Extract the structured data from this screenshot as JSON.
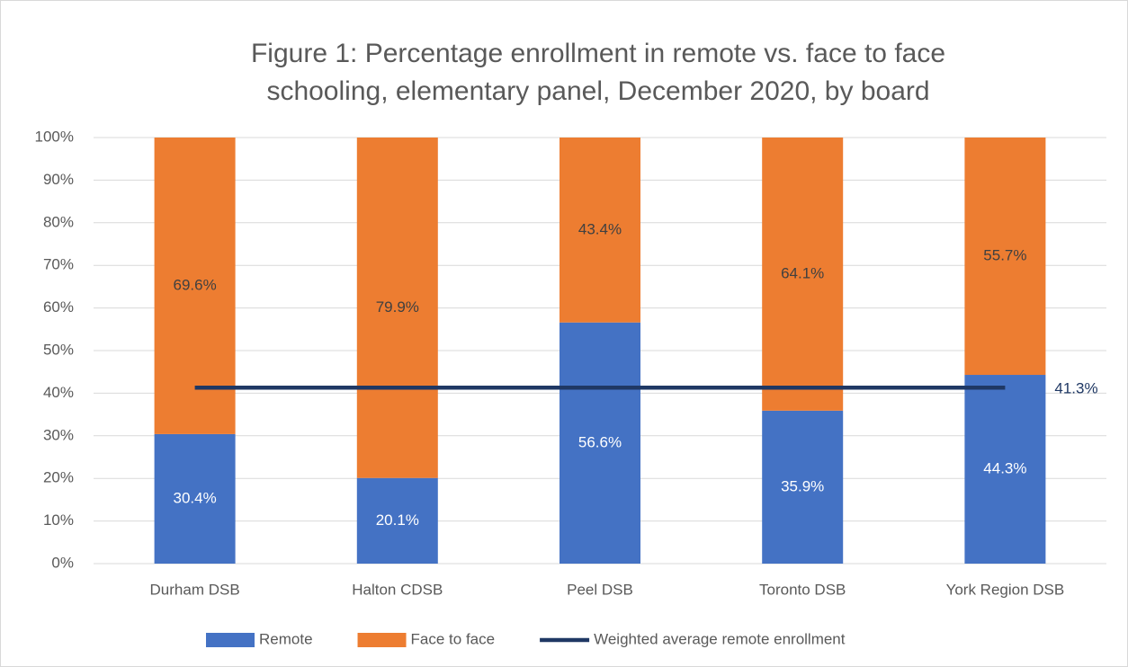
{
  "chart_data": {
    "type": "bar",
    "stacked": true,
    "title": [
      "Figure 1: Percentage enrollment in remote vs. face to face",
      "schooling, elementary panel, December 2020, by board"
    ],
    "categories": [
      "Durham DSB",
      "Halton CDSB",
      "Peel DSB",
      "Toronto DSB",
      "York Region DSB"
    ],
    "series": [
      {
        "name": "Remote",
        "type": "bar",
        "color": "#4472c4",
        "values": [
          30.4,
          20.1,
          56.6,
          35.9,
          44.3
        ],
        "value_labels": [
          "30.4%",
          "20.1%",
          "56.6%",
          "35.9%",
          "44.3%"
        ]
      },
      {
        "name": "Face to face",
        "type": "bar",
        "color": "#ed7d31",
        "values": [
          69.6,
          79.9,
          43.4,
          64.1,
          55.7
        ],
        "value_labels": [
          "69.6%",
          "79.9%",
          "43.4%",
          "64.1%",
          "55.7%"
        ]
      },
      {
        "name": "Weighted average remote enrollment",
        "type": "line",
        "color": "#1f3864",
        "values": [
          41.3,
          41.3,
          41.3,
          41.3,
          41.3
        ],
        "value_labels": [
          null,
          null,
          null,
          null,
          "41.3%"
        ]
      }
    ],
    "ylim": [
      0,
      100
    ],
    "yticks": [
      {
        "value": 0,
        "label": "0%"
      },
      {
        "value": 10,
        "label": "10%"
      },
      {
        "value": 20,
        "label": "20%"
      },
      {
        "value": 30,
        "label": "30%"
      },
      {
        "value": 40,
        "label": "40%"
      },
      {
        "value": 50,
        "label": "50%"
      },
      {
        "value": 60,
        "label": "60%"
      },
      {
        "value": 70,
        "label": "70%"
      },
      {
        "value": 80,
        "label": "80%"
      },
      {
        "value": 90,
        "label": "90%"
      },
      {
        "value": 100,
        "label": "100%"
      }
    ],
    "grid": true,
    "legend": "bottom"
  }
}
